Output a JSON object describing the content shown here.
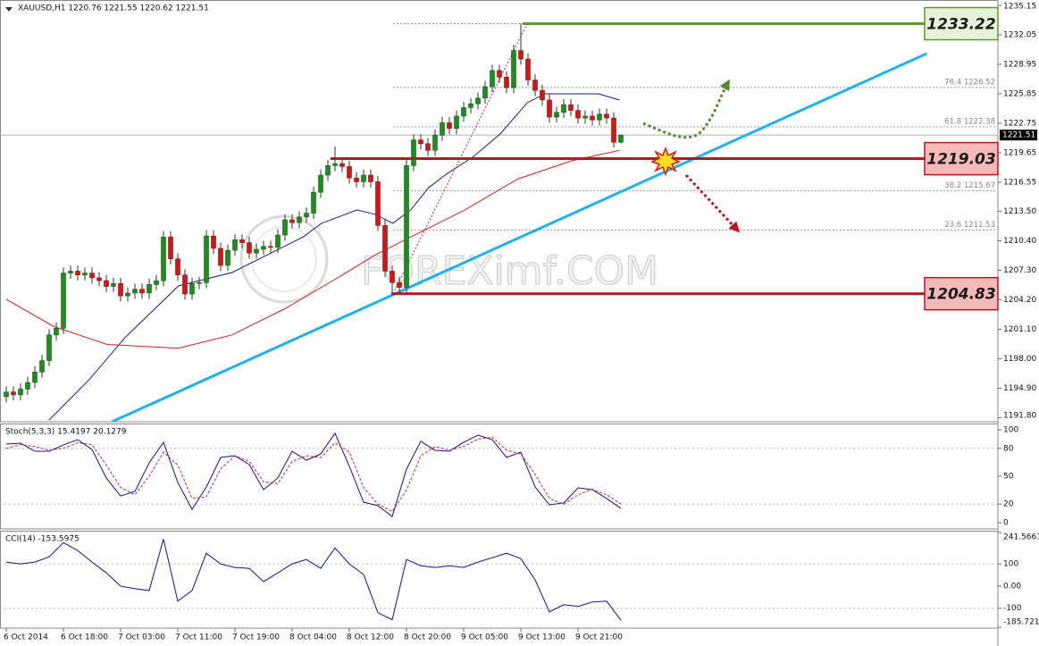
{
  "chart_data": [
    {
      "type": "candlestick",
      "title": "XAUUSD,H1 1220.76 1221.55 1220.62 1221.51",
      "xlim": [
        -0.875,
        138.75
      ],
      "ylim": [
        1191.37,
        1235.71
      ],
      "yticks": [
        1235.15,
        1232.05,
        1228.95,
        1225.85,
        1222.75,
        1219.65,
        1216.55,
        {
          "value": 1213.5,
          "label": "1213.50"
        },
        {
          "value": 1210.4,
          "label": "1210.40"
        },
        {
          "value": 1207.3,
          "label": "1207.30"
        },
        {
          "value": 1204.2,
          "label": "1204.20"
        },
        {
          "value": 1201.1,
          "label": "1201.10"
        },
        {
          "value": 1198,
          "label": "1198.00"
        },
        {
          "value": 1194.9,
          "label": "1194.90"
        },
        {
          "value": 1191.8,
          "label": "1191.80"
        }
      ],
      "up_color": "#1e8c1e",
      "down_color": "#d01818",
      "wick_color": "#333333",
      "candles": {
        "open": [
          1194.0,
          1194.5,
          1194.2,
          1194.8,
          1195.5,
          1196.6,
          1197.8,
          1200.5,
          1201.2,
          1207.0,
          1207.2,
          1206.8,
          1207.0,
          1206.5,
          1206.2,
          1205.6,
          1205.9,
          1204.6,
          1204.9,
          1205.3,
          1204.9,
          1205.8,
          1206.2,
          1210.8,
          1208.5,
          1206.8,
          1204.8,
          1205.9,
          1206.0,
          1210.9,
          1209.6,
          1207.8,
          1209.4,
          1210.5,
          1210.2,
          1209.1,
          1209.5,
          1209.8,
          1209.7,
          1211.0,
          1212.6,
          1212.3,
          1212.9,
          1213.3,
          1215.5,
          1217.3,
          1218.3,
          1218.5,
          1218.2,
          1217.0,
          1216.6,
          1217.3,
          1216.6,
          1212.0,
          1207.2,
          1206.0,
          1205.5,
          1218.3,
          1221.0,
          1220.6,
          1219.9,
          1221.5,
          1222.8,
          1222.2,
          1223.5,
          1224.4,
          1224.8,
          1225.4,
          1226.6,
          1228.3,
          1227.6,
          1226.5,
          1230.4,
          1229.5,
          1227.3,
          1226.2,
          1225.2,
          1223.4,
          1223.9,
          1224.7,
          1224.1,
          1223.3,
          1223.5,
          1223.1,
          1223.7,
          1223.3,
          1220.76
        ],
        "high": [
          1195.1,
          1195.1,
          1195.4,
          1196.1,
          1197.2,
          1198.4,
          1201.1,
          1201.8,
          1207.6,
          1207.8,
          1207.8,
          1207.6,
          1207.6,
          1207.1,
          1206.8,
          1206.5,
          1206.5,
          1205.5,
          1205.9,
          1205.9,
          1206.4,
          1206.8,
          1211.4,
          1211.4,
          1209.1,
          1207.4,
          1206.5,
          1206.6,
          1211.5,
          1211.5,
          1210.2,
          1210.0,
          1211.1,
          1211.1,
          1210.8,
          1210.1,
          1210.4,
          1210.4,
          1211.6,
          1213.2,
          1213.2,
          1213.5,
          1213.9,
          1216.1,
          1217.9,
          1218.9,
          1220.3,
          1219.1,
          1218.8,
          1217.6,
          1217.9,
          1217.9,
          1217.2,
          1212.6,
          1207.8,
          1206.6,
          1218.9,
          1221.6,
          1221.6,
          1221.2,
          1222.1,
          1223.4,
          1223.4,
          1224.1,
          1225.0,
          1225.4,
          1226.0,
          1227.2,
          1228.9,
          1228.9,
          1228.2,
          1231.0,
          1233.22,
          1230.1,
          1227.9,
          1226.8,
          1225.8,
          1224.5,
          1225.3,
          1225.3,
          1224.7,
          1224.1,
          1224.1,
          1224.3,
          1224.3,
          1223.9,
          1221.55
        ],
        "low": [
          1193.4,
          1193.6,
          1193.6,
          1194.2,
          1194.9,
          1196.0,
          1197.2,
          1199.9,
          1200.6,
          1206.4,
          1206.2,
          1206.2,
          1205.9,
          1205.6,
          1205.0,
          1205.0,
          1204.0,
          1204.0,
          1204.3,
          1204.3,
          1204.3,
          1205.2,
          1205.6,
          1207.9,
          1206.2,
          1204.2,
          1204.2,
          1205.3,
          1205.4,
          1209.0,
          1207.2,
          1207.2,
          1208.8,
          1209.6,
          1208.5,
          1208.5,
          1208.9,
          1209.1,
          1209.1,
          1210.4,
          1211.7,
          1211.7,
          1212.3,
          1212.7,
          1214.9,
          1216.7,
          1217.7,
          1217.6,
          1216.4,
          1216.0,
          1216.0,
          1216.0,
          1211.4,
          1206.6,
          1204.83,
          1204.9,
          1204.9,
          1217.7,
          1220.0,
          1219.3,
          1219.3,
          1220.9,
          1221.6,
          1221.6,
          1222.9,
          1223.8,
          1224.2,
          1224.8,
          1226.0,
          1227.0,
          1225.9,
          1225.9,
          1228.9,
          1226.7,
          1225.6,
          1224.6,
          1222.8,
          1222.8,
          1223.3,
          1223.5,
          1222.7,
          1222.7,
          1222.5,
          1222.5,
          1222.7,
          1220.2,
          1220.62
        ],
        "close": [
          1194.5,
          1194.2,
          1194.8,
          1195.5,
          1196.6,
          1197.8,
          1200.5,
          1201.2,
          1207.0,
          1207.2,
          1206.8,
          1207.0,
          1206.5,
          1206.2,
          1205.6,
          1205.9,
          1204.6,
          1204.9,
          1205.3,
          1204.9,
          1205.8,
          1206.2,
          1210.8,
          1208.5,
          1206.8,
          1204.8,
          1205.9,
          1206.0,
          1210.9,
          1209.6,
          1207.8,
          1209.4,
          1210.5,
          1210.2,
          1209.1,
          1209.5,
          1209.8,
          1209.7,
          1211.0,
          1212.6,
          1212.3,
          1212.9,
          1213.3,
          1215.5,
          1217.3,
          1218.3,
          1218.5,
          1218.2,
          1217.0,
          1216.6,
          1217.3,
          1216.6,
          1212.0,
          1207.2,
          1206.0,
          1205.5,
          1218.3,
          1221.0,
          1220.6,
          1219.9,
          1221.5,
          1222.8,
          1222.2,
          1223.5,
          1224.4,
          1224.8,
          1225.4,
          1226.6,
          1228.3,
          1227.6,
          1226.5,
          1230.4,
          1229.5,
          1227.3,
          1226.2,
          1225.2,
          1223.4,
          1223.9,
          1224.7,
          1224.1,
          1223.3,
          1223.5,
          1223.1,
          1223.7,
          1223.3,
          1220.76,
          1221.51
        ]
      },
      "series": [
        {
          "color": "#1a1a8c",
          "width": 1,
          "x": [
            6,
            11.6,
            16.6,
            24.1,
            31.6,
            36.6,
            41.6,
            44.1,
            49.1,
            51.6,
            54.1,
            56.6,
            59.1,
            61.6,
            65.4,
            69.1,
            72.9,
            75.4,
            79.1,
            82.9,
            85.8
          ],
          "values": [
            1191.56,
            1195.79,
            1200.2,
            1205.65,
            1207.06,
            1208.94,
            1210.82,
            1212.23,
            1213.64,
            1213.17,
            1212.23,
            1213.64,
            1215.99,
            1217.4,
            1219.27,
            1221.62,
            1224.91,
            1225.85,
            1225.85,
            1225.85,
            1225.19
          ]
        },
        {
          "color": "#d42020",
          "width": 1,
          "x": [
            0,
            6.6,
            14.1,
            24.1,
            31.6,
            39.1,
            46.6,
            51.6,
            56.6,
            64.1,
            71.6,
            79.1,
            85.8
          ],
          "values": [
            1204.25,
            1201.4,
            1199.5,
            1199.1,
            1200.5,
            1203.3,
            1206.6,
            1208.9,
            1210.8,
            1213.6,
            1216.9,
            1218.8,
            1219.9
          ]
        },
        {
          "color": "#1fb2f0",
          "width": 3,
          "x": [
            14.8,
            128.8
          ],
          "values": [
            1191.37,
            1230.08
          ]
        }
      ],
      "key_levels": [
        {
          "value": 1233.22,
          "color": "#5e9b2e",
          "fill": "#e6f3da"
        },
        {
          "value": 1219.03,
          "color": "#c0141c",
          "fill": "#f6b9b9"
        },
        {
          "value": 1204.83,
          "color": "#c0141c",
          "fill": "#f6b9b9"
        }
      ],
      "fib_levels": [
        {
          "value": 1226.52,
          "label": "76.4 1226.52"
        },
        {
          "value": 1222.38,
          "label": "61.8 1222.38"
        },
        {
          "value": 1215.67,
          "label": "38.2 1215.67"
        },
        {
          "value": 1211.53,
          "label": "23.6 1211.53"
        }
      ],
      "current_price": 1221.51,
      "watermark": "FOREXimf.COM"
    },
    {
      "type": "line",
      "title": "Stoch(5,3,3) 15.4197 20.1279",
      "xlim": [
        -0.875,
        138.75
      ],
      "ylim": [
        0,
        100
      ],
      "yticks": [
        100,
        80,
        50,
        20,
        0
      ],
      "levels": [
        80,
        20
      ],
      "x": [
        0,
        2,
        4,
        6,
        8,
        10,
        12,
        14,
        16,
        18,
        20,
        22,
        24,
        26,
        28,
        30,
        32,
        34,
        36,
        38,
        40,
        42,
        44,
        46,
        48,
        50,
        52,
        54,
        56,
        58,
        60,
        62,
        64,
        66,
        68,
        70,
        72,
        74,
        76,
        78,
        80,
        82,
        84,
        86
      ],
      "series": [
        {
          "color": "#1010a0",
          "dash": false,
          "values": [
            84.6,
            85.6,
            76.9,
            76.9,
            83.7,
            89.4,
            78.8,
            48.1,
            28.8,
            33.7,
            64.4,
            86.5,
            43.3,
            14.4,
            38.5,
            70.2,
            72.1,
            62.5,
            35.6,
            48.1,
            76.9,
            67.3,
            74.0,
            96.2,
            60.6,
            22.1,
            18.3,
            6.7,
            57.7,
            87.5,
            77.9,
            76.9,
            86.5,
            94.2,
            89.4,
            70.2,
            76.0,
            38.5,
            19.2,
            21.2,
            37.5,
            35.6,
            26.0,
            15.4197
          ]
        },
        {
          "color": "#e02020",
          "dash": true,
          "values": [
            80,
            84,
            82,
            78,
            80,
            86,
            84,
            62,
            38,
            30,
            50,
            76,
            62,
            26,
            28,
            58,
            72,
            66,
            44,
            42,
            66,
            72,
            70,
            86,
            76,
            38,
            20,
            12,
            35,
            72,
            82,
            78,
            82,
            90,
            92,
            78,
            74,
            52,
            26,
            20,
            30,
            36,
            30,
            20.1279
          ]
        }
      ]
    },
    {
      "type": "line",
      "title": "CCI(14) -153.5975",
      "xlim": [
        -0.875,
        138.75
      ],
      "ylim": [
        -185.7211,
        241.5663
      ],
      "yticks": [
        241.5663,
        100,
        {
          "value": 0,
          "label": "0.00"
        },
        -100,
        -185.7211
      ],
      "levels": [
        100,
        -100
      ],
      "x": [
        0,
        2,
        4,
        6,
        8,
        10,
        12,
        14,
        16,
        18,
        20,
        22,
        24,
        26,
        28,
        30,
        32,
        34,
        36,
        38,
        40,
        42,
        44,
        46,
        48,
        50,
        52,
        54,
        56,
        58,
        60,
        62,
        64,
        66,
        68,
        70,
        72,
        74,
        76,
        78,
        80,
        82,
        84,
        86
      ],
      "series": [
        {
          "color": "#1010a0",
          "dash": false,
          "values": [
            108,
            100,
            108,
            132,
            196,
            160,
            108,
            60,
            0,
            -12,
            -20,
            212,
            -68,
            -20,
            148,
            100,
            84,
            80,
            20,
            60,
            100,
            120,
            80,
            172,
            100,
            52,
            -120,
            -152,
            120,
            92,
            84,
            92,
            84,
            108,
            128,
            148,
            124,
            28,
            -116,
            -84,
            -92,
            -72,
            -68,
            -153.5975
          ]
        }
      ],
      "xticks": [
        {
          "value": 0,
          "label": "6 Oct 2014"
        },
        {
          "value": 8,
          "label": "6 Oct 18:00"
        },
        {
          "value": 16,
          "label": "7 Oct 03:00"
        },
        {
          "value": 24,
          "label": "7 Oct 11:00"
        },
        {
          "value": 32,
          "label": "7 Oct 19:00"
        },
        {
          "value": 40,
          "label": "8 Oct 04:00"
        },
        {
          "value": 48,
          "label": "8 Oct 12:00"
        },
        {
          "value": 56,
          "label": "8 Oct 20:00"
        },
        {
          "value": 64,
          "label": "9 Oct 05:00"
        },
        {
          "value": 72,
          "label": "9 Oct 13:00"
        },
        {
          "value": 80,
          "label": "9 Oct 21:00"
        }
      ]
    }
  ]
}
